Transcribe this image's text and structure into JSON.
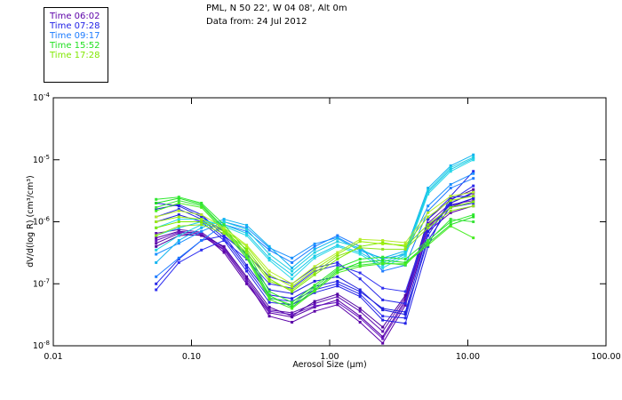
{
  "header": {
    "line1": "PML, N 50 22', W 04 08', Alt 0m",
    "line2": "Data from: 24 Jul 2012"
  },
  "legend": [
    {
      "label": "Time 06:02",
      "color": "#5b00a8"
    },
    {
      "label": "Time 07:28",
      "color": "#2222e6"
    },
    {
      "label": "Time 09:17",
      "color": "#1e7cff"
    },
    {
      "label": "Time 15:52",
      "color": "#22e022"
    },
    {
      "label": "Time 17:28",
      "color": "#80e800"
    }
  ],
  "chart_data": {
    "type": "line",
    "title": "PML, N 50 22', W 04 08', Alt 0m",
    "subtitle": "Data from: 24 Jul 2012",
    "xlabel": "Aerosol Size (µm)",
    "ylabel": "dV/d(log R)  (cm³/cm³)",
    "xscale": "log",
    "yscale": "log",
    "xlim": [
      0.01,
      100
    ],
    "ylim": [
      1e-08,
      0.0001
    ],
    "x_tick_values": [
      0.01,
      0.1,
      1,
      10,
      100
    ],
    "x_tick_labels": [
      "0.01",
      "0.10",
      "1.00",
      "10.00",
      "100.00"
    ],
    "y_tick_values": [
      0.0001,
      1e-05,
      1e-06,
      1e-07,
      1e-08
    ],
    "y_tick_labels": [
      {
        "base": "10",
        "exp": "-4"
      },
      {
        "base": "10",
        "exp": "-5"
      },
      {
        "base": "10",
        "exp": "-6"
      },
      {
        "base": "10",
        "exp": "-7"
      },
      {
        "base": "10",
        "exp": "-8"
      }
    ],
    "grid": false,
    "legend_position": "top-left",
    "x": [
      0.0555,
      0.081,
      0.118,
      0.172,
      0.251,
      0.366,
      0.534,
      0.779,
      1.14,
      1.66,
      2.42,
      3.53,
      5.15,
      7.51,
      10.96
    ],
    "series": [
      {
        "name": "Time 06:02",
        "color": "#5b00a8",
        "values": [
          4.5e-07,
          6.5e-07,
          6e-07,
          3.5e-07,
          1.1e-07,
          3e-08,
          2.4e-08,
          3.6e-08,
          4.6e-08,
          2.4e-08,
          1.1e-08,
          4.5e-08,
          7e-07,
          1.4e-06,
          1.8e-06
        ]
      },
      {
        "name": "Time 06:02",
        "color": "#5b00a8",
        "values": [
          5.5e-07,
          7e-07,
          6.5e-07,
          3.2e-07,
          1e-07,
          3.4e-08,
          2.9e-08,
          4.2e-08,
          5.5e-08,
          3e-08,
          1.4e-08,
          5.5e-08,
          8.5e-07,
          1.7e-06,
          2.4e-06
        ]
      },
      {
        "name": "Time 06:02",
        "color": "#6010b0",
        "values": [
          6.5e-07,
          7.5e-07,
          6.8e-07,
          3.8e-07,
          1.2e-07,
          3.8e-08,
          3.4e-08,
          4.8e-08,
          6.2e-08,
          3.6e-08,
          1.7e-08,
          6e-08,
          9.5e-07,
          2e-06,
          2.9e-06
        ]
      },
      {
        "name": "Time 06:02",
        "color": "#5000a0",
        "values": [
          4e-07,
          6e-07,
          6.2e-07,
          4e-07,
          1.3e-07,
          4.2e-08,
          3e-08,
          5.2e-08,
          6.8e-08,
          4e-08,
          2e-08,
          6.5e-08,
          1.1e-06,
          2.3e-06,
          3.3e-06
        ]
      },
      {
        "name": "Time 06:02",
        "color": "#6818c0",
        "values": [
          5e-07,
          6.8e-07,
          6.4e-07,
          3.6e-07,
          1.1e-07,
          3.6e-08,
          3.2e-08,
          4.4e-08,
          5e-08,
          2.8e-08,
          1.3e-08,
          5e-08,
          8e-07,
          1.9e-06,
          2.2e-06
        ]
      },
      {
        "name": "Time 07:28",
        "color": "#2222e6",
        "values": [
          1e-06,
          1.3e-06,
          1e-06,
          5e-07,
          1.6e-07,
          5e-08,
          4.6e-08,
          7.2e-08,
          9.2e-08,
          6.2e-08,
          2.6e-08,
          2.3e-08,
          4e-07,
          2.6e-06,
          6.5e-06
        ]
      },
      {
        "name": "Time 07:28",
        "color": "#2a2aee",
        "values": [
          1.2e-06,
          1.6e-06,
          1.1e-06,
          5.5e-07,
          1.8e-07,
          5.8e-08,
          5.2e-08,
          8e-08,
          1e-07,
          6.8e-08,
          3e-08,
          2.8e-08,
          6e-07,
          2.2e-06,
          3.8e-06
        ]
      },
      {
        "name": "Time 07:28",
        "color": "#1e1ee0",
        "values": [
          1.6e-06,
          1.9e-06,
          1.3e-06,
          6e-07,
          2e-07,
          6.6e-08,
          5.8e-08,
          9e-08,
          1.1e-07,
          7.5e-08,
          4e-08,
          3.5e-08,
          7e-07,
          2e-06,
          3e-06
        ]
      },
      {
        "name": "Time 07:28",
        "color": "#3030f0",
        "values": [
          8e-08,
          2.2e-07,
          3.5e-07,
          5e-07,
          2.5e-07,
          1e-07,
          8.5e-08,
          1.6e-07,
          2e-07,
          1.5e-07,
          8.5e-08,
          7.5e-08,
          9e-07,
          1.7e-06,
          2e-06
        ]
      },
      {
        "name": "Time 07:28",
        "color": "#2828e8",
        "values": [
          1e-07,
          2.5e-07,
          5e-07,
          6e-07,
          3e-07,
          1.3e-07,
          1e-07,
          1.8e-07,
          2.2e-07,
          1.2e-07,
          5.5e-08,
          4.8e-08,
          1.1e-06,
          2.5e-06,
          2.6e-06
        ]
      },
      {
        "name": "Time 07:28",
        "color": "#2020dc",
        "values": [
          2e-06,
          1.8e-06,
          1.2e-06,
          7e-07,
          2.6e-07,
          8e-08,
          7e-08,
          1.1e-07,
          1.3e-07,
          8e-08,
          3.8e-08,
          3.2e-08,
          5e-07,
          1.8e-06,
          2.4e-06
        ]
      },
      {
        "name": "Time 09:17",
        "color": "#1e7cff",
        "values": [
          1.3e-07,
          2.6e-07,
          5e-07,
          9e-07,
          7e-07,
          3.5e-07,
          2.2e-07,
          4e-07,
          6e-07,
          4e-07,
          1.6e-07,
          2e-07,
          1.5e-06,
          3.5e-06,
          5e-06
        ]
      },
      {
        "name": "Time 09:17",
        "color": "#1a90ff",
        "values": [
          3e-07,
          4.5e-07,
          7e-07,
          1e-06,
          8e-07,
          3.8e-07,
          2.6e-07,
          4.4e-07,
          5.6e-07,
          3.6e-07,
          2.5e-07,
          3e-07,
          1.8e-06,
          4e-06,
          6e-06
        ]
      },
      {
        "name": "Time 09:17",
        "color": "#10b4f0",
        "values": [
          2.2e-07,
          5e-07,
          8e-07,
          1.1e-06,
          8.8e-07,
          4e-07,
          1.8e-07,
          3.6e-07,
          5.4e-07,
          3.4e-07,
          2.6e-07,
          3.4e-07,
          3.5e-06,
          8e-06,
          1.2e-05
        ]
      },
      {
        "name": "Time 09:17",
        "color": "#20d0e0",
        "values": [
          3.5e-07,
          6e-07,
          9e-07,
          1e-06,
          7.5e-07,
          3e-07,
          1.6e-07,
          3.2e-07,
          4.8e-07,
          3.8e-07,
          2.2e-07,
          3.2e-07,
          3.2e-06,
          7.5e-06,
          1.1e-05
        ]
      },
      {
        "name": "Time 09:17",
        "color": "#18c8e8",
        "values": [
          6e-07,
          8e-07,
          1e-06,
          9e-07,
          6.5e-07,
          2.6e-07,
          1.4e-07,
          2.8e-07,
          4.2e-07,
          3.2e-07,
          2e-07,
          3e-07,
          3e-06,
          7e-06,
          1.05e-05
        ]
      },
      {
        "name": "Time 09:17",
        "color": "#28d8e8",
        "values": [
          8e-07,
          1.1e-06,
          1.1e-06,
          8.5e-07,
          6e-07,
          2.4e-07,
          1.2e-07,
          2.6e-07,
          4e-07,
          3e-07,
          1.8e-07,
          2.8e-07,
          2.8e-06,
          6.5e-06,
          1e-05
        ]
      },
      {
        "name": "Time 15:52",
        "color": "#22e022",
        "values": [
          2e-06,
          2.4e-06,
          1.9e-06,
          8e-07,
          3e-07,
          6.5e-08,
          4.2e-08,
          8e-08,
          1.6e-07,
          2.2e-07,
          2.4e-07,
          2.2e-07,
          4.5e-07,
          9e-07,
          1.2e-06
        ]
      },
      {
        "name": "Time 15:52",
        "color": "#30e830",
        "values": [
          2.3e-06,
          2.5e-06,
          2e-06,
          9e-07,
          3.4e-07,
          7.5e-08,
          5e-08,
          9.5e-08,
          1.8e-07,
          2.5e-07,
          2.7e-07,
          2.5e-07,
          5e-07,
          1e-06,
          1.3e-06
        ]
      },
      {
        "name": "Time 15:52",
        "color": "#3ce43c",
        "values": [
          1.7e-06,
          2.2e-06,
          1.8e-06,
          7.5e-07,
          2.8e-07,
          6e-08,
          4.6e-08,
          8.8e-08,
          1.7e-07,
          2e-07,
          2.2e-07,
          2e-07,
          4.8e-07,
          1.1e-06,
          1e-06
        ]
      },
      {
        "name": "Time 15:52",
        "color": "#46ec20",
        "values": [
          1.5e-06,
          2e-06,
          1.7e-06,
          7e-07,
          2.6e-07,
          5.6e-08,
          4e-08,
          7.6e-08,
          1.5e-07,
          1.9e-07,
          2.1e-07,
          2.1e-07,
          4.2e-07,
          8.5e-07,
          5.5e-07
        ]
      },
      {
        "name": "Time 17:28",
        "color": "#80e800",
        "values": [
          8e-07,
          1e-06,
          1e-06,
          7e-07,
          3.6e-07,
          1.2e-07,
          7.5e-08,
          1.4e-07,
          2.5e-07,
          4e-07,
          4.6e-07,
          4e-07,
          9e-07,
          1.7e-06,
          2.1e-06
        ]
      },
      {
        "name": "Time 17:28",
        "color": "#a0ee10",
        "values": [
          1e-06,
          1.2e-06,
          1.1e-06,
          7.5e-07,
          4e-07,
          1.4e-07,
          9e-08,
          1.7e-07,
          3e-07,
          4.8e-07,
          4.4e-07,
          4.2e-07,
          1.2e-06,
          2.2e-06,
          2.6e-06
        ]
      },
      {
        "name": "Time 17:28",
        "color": "#90e41a",
        "values": [
          6e-07,
          8.5e-07,
          9e-07,
          6.5e-07,
          3.2e-07,
          1.1e-07,
          8e-08,
          1.5e-07,
          2.8e-07,
          3.8e-07,
          3.6e-07,
          3.6e-07,
          8e-07,
          1.5e-06,
          1.8e-06
        ]
      },
      {
        "name": "Time 17:28",
        "color": "#b4ec28",
        "values": [
          1.2e-06,
          1.5e-06,
          1.3e-06,
          8e-07,
          4.2e-07,
          1.6e-07,
          1e-07,
          1.9e-07,
          3.2e-07,
          5.2e-07,
          5e-07,
          4.6e-07,
          1.4e-06,
          2.6e-06,
          3e-06
        ]
      }
    ]
  }
}
